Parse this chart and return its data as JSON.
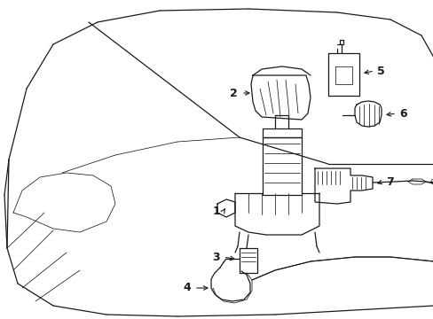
{
  "background_color": "#ffffff",
  "line_color": "#1a1a1a",
  "fig_width": 4.89,
  "fig_height": 3.6,
  "dpi": 100,
  "font_size": 9,
  "lw_main": 0.9,
  "lw_thin": 0.55,
  "lw_thick": 1.2
}
